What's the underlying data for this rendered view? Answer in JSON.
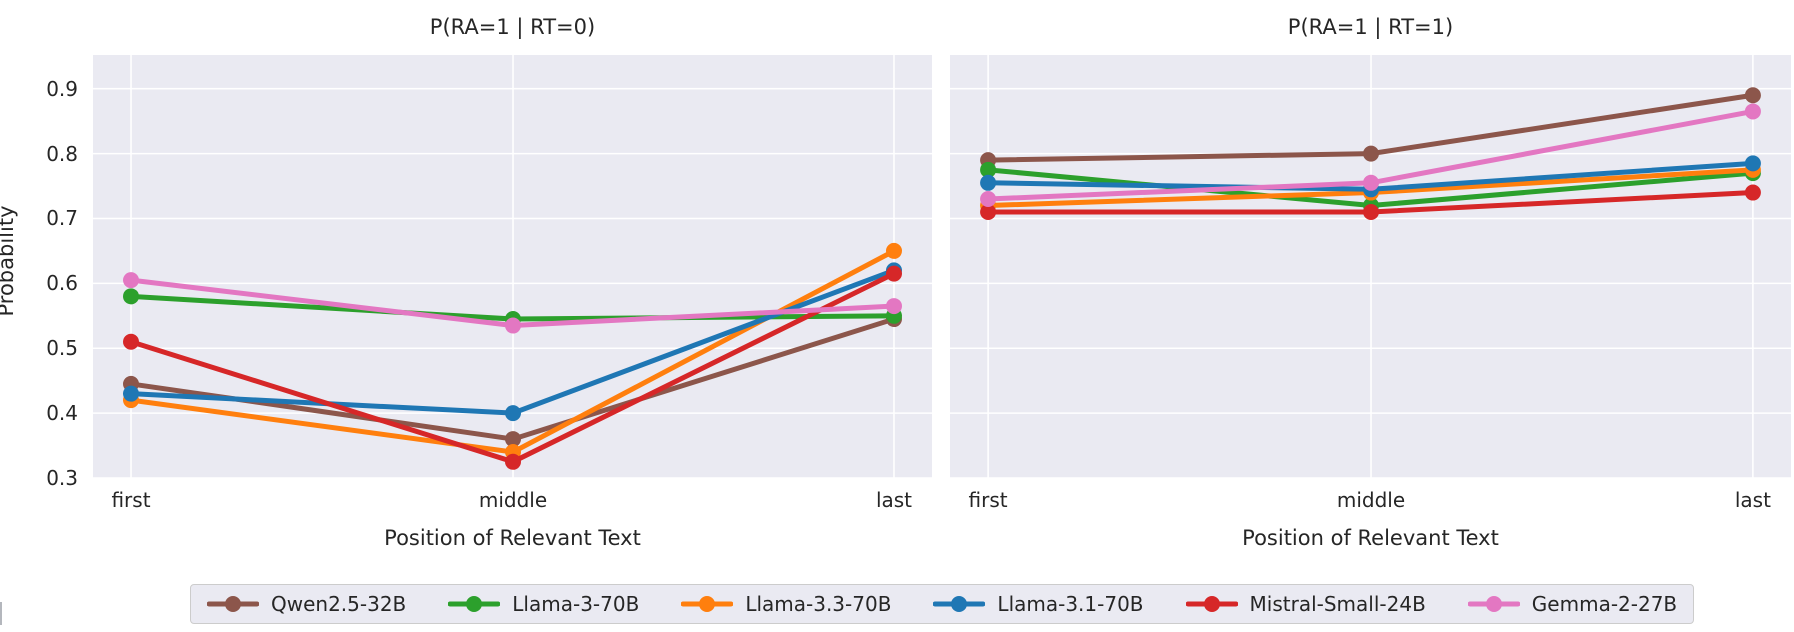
{
  "figure": {
    "ylabel": "Probability",
    "xlabel": "Position of Relevant Text",
    "background_color": "#ffffff",
    "plot_background_color": "#eaeaf2",
    "grid_color": "#ffffff",
    "text_color": "#262626"
  },
  "chart_data": [
    {
      "type": "line",
      "title": "P(RA=1 | RT=0)",
      "categories": [
        "first",
        "middle",
        "last"
      ],
      "xlabel": "Position of Relevant Text",
      "ylabel": "Probability",
      "ylim": [
        0.3,
        0.952
      ],
      "yticks": [
        0.3,
        0.4,
        0.5,
        0.6,
        0.7,
        0.8,
        0.9
      ],
      "grid": true,
      "legend_position": "bottom",
      "series": [
        {
          "name": "Qwen2.5-32B",
          "color": "#8c564b",
          "values": [
            0.445,
            0.36,
            0.545
          ]
        },
        {
          "name": "Llama-3-70B",
          "color": "#2ca02c",
          "values": [
            0.58,
            0.545,
            0.55
          ]
        },
        {
          "name": "Llama-3.3-70B",
          "color": "#ff7f0e",
          "values": [
            0.42,
            0.34,
            0.65
          ]
        },
        {
          "name": "Llama-3.1-70B",
          "color": "#1f77b4",
          "values": [
            0.43,
            0.4,
            0.62
          ]
        },
        {
          "name": "Mistral-Small-24B",
          "color": "#d62728",
          "values": [
            0.51,
            0.325,
            0.615
          ]
        },
        {
          "name": "Gemma-2-27B",
          "color": "#e377c2",
          "values": [
            0.605,
            0.535,
            0.565
          ]
        }
      ]
    },
    {
      "type": "line",
      "title": "P(RA=1 | RT=1)",
      "categories": [
        "first",
        "middle",
        "last"
      ],
      "xlabel": "Position of Relevant Text",
      "ylabel": "Probability",
      "ylim": [
        0.3,
        0.952
      ],
      "yticks": [
        0.3,
        0.4,
        0.5,
        0.6,
        0.7,
        0.8,
        0.9
      ],
      "grid": true,
      "legend_position": "bottom",
      "series": [
        {
          "name": "Qwen2.5-32B",
          "color": "#8c564b",
          "values": [
            0.79,
            0.8,
            0.89
          ]
        },
        {
          "name": "Llama-3-70B",
          "color": "#2ca02c",
          "values": [
            0.775,
            0.72,
            0.77
          ]
        },
        {
          "name": "Llama-3.3-70B",
          "color": "#ff7f0e",
          "values": [
            0.72,
            0.74,
            0.775
          ]
        },
        {
          "name": "Llama-3.1-70B",
          "color": "#1f77b4",
          "values": [
            0.755,
            0.745,
            0.785
          ]
        },
        {
          "name": "Mistral-Small-24B",
          "color": "#d62728",
          "values": [
            0.71,
            0.71,
            0.74
          ]
        },
        {
          "name": "Gemma-2-27B",
          "color": "#e377c2",
          "values": [
            0.73,
            0.755,
            0.865
          ]
        }
      ]
    }
  ],
  "legend": {
    "entries": [
      {
        "label": "Qwen2.5-32B",
        "color": "#8c564b"
      },
      {
        "label": "Llama-3-70B",
        "color": "#2ca02c"
      },
      {
        "label": "Llama-3.3-70B",
        "color": "#ff7f0e"
      },
      {
        "label": "Llama-3.1-70B",
        "color": "#1f77b4"
      },
      {
        "label": "Mistral-Small-24B",
        "color": "#d62728"
      },
      {
        "label": "Gemma-2-27B",
        "color": "#e377c2"
      }
    ]
  }
}
